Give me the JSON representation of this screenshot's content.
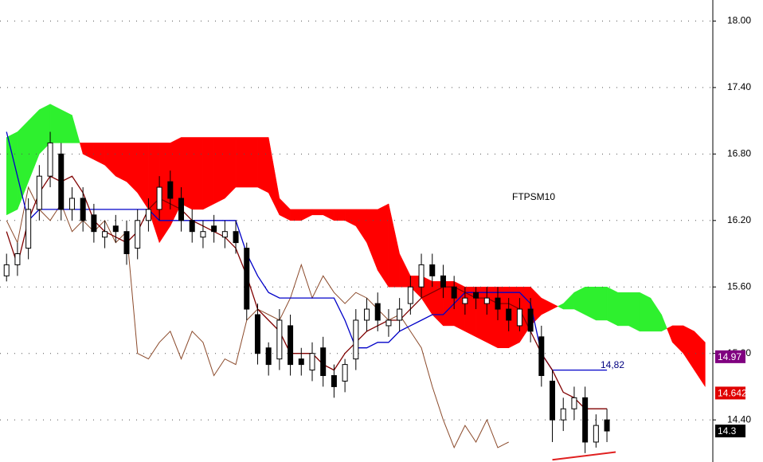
{
  "chart_data": {
    "type": "candlestick",
    "title": "FTPSM10",
    "ylim": [
      14.02,
      18.19
    ],
    "xlim": [
      -0.6,
      64.7
    ],
    "yticks": [
      {
        "value": 18,
        "label": "18.00"
      },
      {
        "value": 17.4,
        "label": "17.40"
      },
      {
        "value": 16.8,
        "label": "16.80"
      },
      {
        "value": 16.2,
        "label": "16.20"
      },
      {
        "value": 15.6,
        "label": "15.60"
      },
      {
        "value": 15,
        "label": "15.00"
      },
      {
        "value": 14.4,
        "label": "14.40"
      }
    ],
    "grid": true,
    "candles": {
      "open": [
        15.7,
        15.8,
        15.95,
        16.3,
        16.6,
        16.8,
        16.3,
        16.4,
        16.25,
        16.05,
        16.15,
        16.1,
        15.95,
        16.2,
        16.3,
        16.55,
        16.4,
        16.2,
        16.05,
        16.15,
        16.05,
        16.1,
        15.95,
        15.35,
        15.05,
        14.95,
        15.25,
        14.95,
        14.85,
        15.05,
        14.8,
        14.75,
        14.95,
        15.3,
        15.45,
        15.25,
        15.3,
        15.45,
        15.6,
        15.8,
        15.7,
        15.6,
        15.45,
        15.55,
        15.45,
        15.5,
        15.4,
        15.25,
        15.4,
        15.15,
        14.75,
        14.4,
        14.5,
        14.6,
        14.2,
        14.4
      ],
      "high": [
        15.9,
        16.0,
        16.4,
        16.7,
        17.0,
        16.9,
        16.5,
        16.5,
        16.35,
        16.2,
        16.25,
        16.2,
        16.3,
        16.4,
        16.6,
        16.65,
        16.5,
        16.3,
        16.2,
        16.25,
        16.2,
        16.2,
        16.0,
        15.45,
        15.1,
        15.4,
        15.35,
        15.05,
        15.1,
        15.15,
        14.9,
        14.95,
        15.4,
        15.5,
        15.55,
        15.4,
        15.5,
        15.7,
        15.9,
        15.9,
        15.8,
        15.7,
        15.6,
        15.6,
        15.6,
        15.6,
        15.5,
        15.5,
        15.5,
        15.25,
        14.85,
        14.6,
        14.7,
        14.7,
        14.45,
        14.5
      ],
      "low": [
        15.65,
        15.7,
        15.85,
        16.2,
        16.5,
        16.2,
        16.2,
        16.1,
        16.0,
        15.95,
        16.0,
        15.8,
        15.85,
        16.1,
        16.2,
        16.3,
        16.1,
        16.0,
        15.95,
        16.0,
        15.95,
        15.9,
        15.3,
        14.9,
        14.8,
        14.85,
        14.8,
        14.8,
        14.75,
        14.7,
        14.6,
        14.65,
        14.85,
        15.2,
        15.2,
        15.15,
        15.2,
        15.35,
        15.5,
        15.6,
        15.5,
        15.4,
        15.35,
        15.4,
        15.35,
        15.3,
        15.2,
        15.2,
        15.1,
        14.7,
        14.2,
        14.3,
        14.4,
        14.1,
        14.15,
        14.2
      ],
      "close": [
        15.8,
        15.9,
        16.3,
        16.6,
        16.9,
        16.3,
        16.4,
        16.2,
        16.1,
        16.1,
        16.1,
        15.9,
        16.2,
        16.3,
        16.5,
        16.4,
        16.2,
        16.1,
        16.1,
        16.1,
        16.1,
        16.0,
        15.4,
        15.0,
        14.9,
        15.3,
        14.9,
        14.9,
        15.0,
        14.8,
        14.7,
        14.9,
        15.3,
        15.4,
        15.3,
        15.3,
        15.4,
        15.6,
        15.8,
        15.7,
        15.6,
        15.5,
        15.5,
        15.5,
        15.5,
        15.4,
        15.3,
        15.4,
        15.2,
        14.8,
        14.4,
        14.5,
        14.6,
        14.2,
        14.35,
        14.3
      ]
    },
    "cloud": {
      "span_a": [
        16.95,
        17.0,
        17.1,
        17.2,
        17.25,
        17.2,
        17.15,
        16.8,
        16.75,
        16.7,
        16.6,
        16.55,
        16.45,
        16.3,
        16.0,
        16.15,
        16.35,
        16.3,
        16.3,
        16.35,
        16.4,
        16.5,
        16.5,
        16.5,
        16.45,
        16.25,
        16.2,
        16.2,
        16.25,
        16.25,
        16.2,
        16.2,
        16.15,
        16.0,
        15.75,
        15.6,
        15.6,
        15.6,
        15.5,
        15.35,
        15.25,
        15.25,
        15.2,
        15.15,
        15.1,
        15.05,
        15.05,
        15.1,
        15.25,
        15.35,
        15.4,
        15.45,
        15.55,
        15.6,
        15.6,
        15.6,
        15.55,
        15.55,
        15.55,
        15.5,
        15.35,
        15.1,
        15.0,
        14.85,
        14.7
      ],
      "span_b": [
        16.25,
        16.3,
        16.55,
        16.8,
        16.9,
        16.9,
        16.9,
        16.9,
        16.9,
        16.9,
        16.9,
        16.9,
        16.9,
        16.9,
        16.9,
        16.9,
        16.95,
        16.95,
        16.95,
        16.95,
        16.95,
        16.95,
        16.95,
        16.95,
        16.95,
        16.4,
        16.3,
        16.3,
        16.3,
        16.3,
        16.3,
        16.3,
        16.3,
        16.3,
        16.3,
        16.35,
        15.9,
        15.7,
        15.7,
        15.65,
        15.65,
        15.65,
        15.6,
        15.6,
        15.6,
        15.6,
        15.6,
        15.6,
        15.6,
        15.5,
        15.45,
        15.4,
        15.4,
        15.35,
        15.3,
        15.3,
        15.25,
        15.25,
        15.2,
        15.2,
        15.2,
        15.25,
        15.25,
        15.2,
        15.1
      ],
      "bull_color": "#2ef02e",
      "bear_color": "#ff0000"
    },
    "lines": [
      {
        "color": "#8b4a2b",
        "width": 1,
        "values": [
          16.2,
          16.0,
          16.5,
          16.3,
          16.2,
          16.35,
          16.1,
          16.2,
          16.1,
          16.2,
          16.0,
          16.1,
          15.0,
          14.95,
          15.1,
          15.2,
          14.95,
          15.2,
          15.1,
          14.8,
          14.95,
          14.9,
          15.3,
          15.4,
          15.35,
          15.3,
          15.5,
          15.8,
          15.5,
          15.7,
          15.55,
          15.45,
          15.55,
          15.5,
          15.4,
          15.3,
          15.35,
          15.2,
          15.05,
          14.7,
          14.4,
          14.15,
          14.35,
          14.2,
          14.4,
          14.15,
          14.2,
          null,
          null,
          null,
          null,
          null,
          null,
          null,
          null,
          null
        ]
      },
      {
        "color": "#0000c8",
        "width": 1.3,
        "values": [
          17.0,
          16.6,
          16.2,
          16.3,
          16.3,
          16.3,
          16.3,
          16.3,
          16.3,
          16.3,
          16.3,
          16.3,
          16.3,
          16.3,
          16.2,
          16.2,
          16.2,
          16.2,
          16.2,
          16.2,
          16.2,
          16.2,
          15.9,
          15.7,
          15.55,
          15.5,
          15.5,
          15.5,
          15.5,
          15.5,
          15.5,
          15.3,
          15.05,
          15.05,
          15.1,
          15.1,
          15.2,
          15.25,
          15.3,
          15.35,
          15.35,
          15.45,
          15.55,
          15.55,
          15.55,
          15.55,
          15.55,
          15.55,
          15.45,
          15.0,
          14.85,
          14.85,
          14.85,
          14.85,
          14.85,
          14.85
        ]
      },
      {
        "color": "#800000",
        "width": 1.3,
        "values": [
          16.1,
          15.8,
          16.2,
          16.45,
          16.6,
          16.55,
          16.6,
          16.45,
          16.2,
          16.1,
          16.05,
          16.0,
          16.1,
          16.3,
          16.4,
          16.35,
          16.3,
          16.2,
          16.15,
          16.1,
          16.05,
          15.95,
          15.7,
          15.4,
          15.3,
          15.2,
          15.0,
          15.0,
          15.0,
          14.9,
          14.85,
          15.0,
          15.1,
          15.2,
          15.25,
          15.3,
          15.3,
          15.4,
          15.5,
          15.55,
          15.6,
          15.6,
          15.55,
          15.5,
          15.5,
          15.45,
          15.45,
          15.4,
          15.2,
          15.0,
          14.85,
          14.65,
          14.6,
          14.5,
          14.5,
          14.5
        ]
      }
    ],
    "trendline": {
      "x": [
        50,
        55.8
      ],
      "values": [
        14.04,
        14.11
      ],
      "color": "#e02020"
    },
    "annotation": {
      "text": "14,82",
      "color": "#000080"
    },
    "price_tags": {
      "values": [
        14.97,
        14.6425,
        14.3
      ],
      "colors": [
        "#800080",
        "#e00000",
        "#000000"
      ]
    }
  }
}
